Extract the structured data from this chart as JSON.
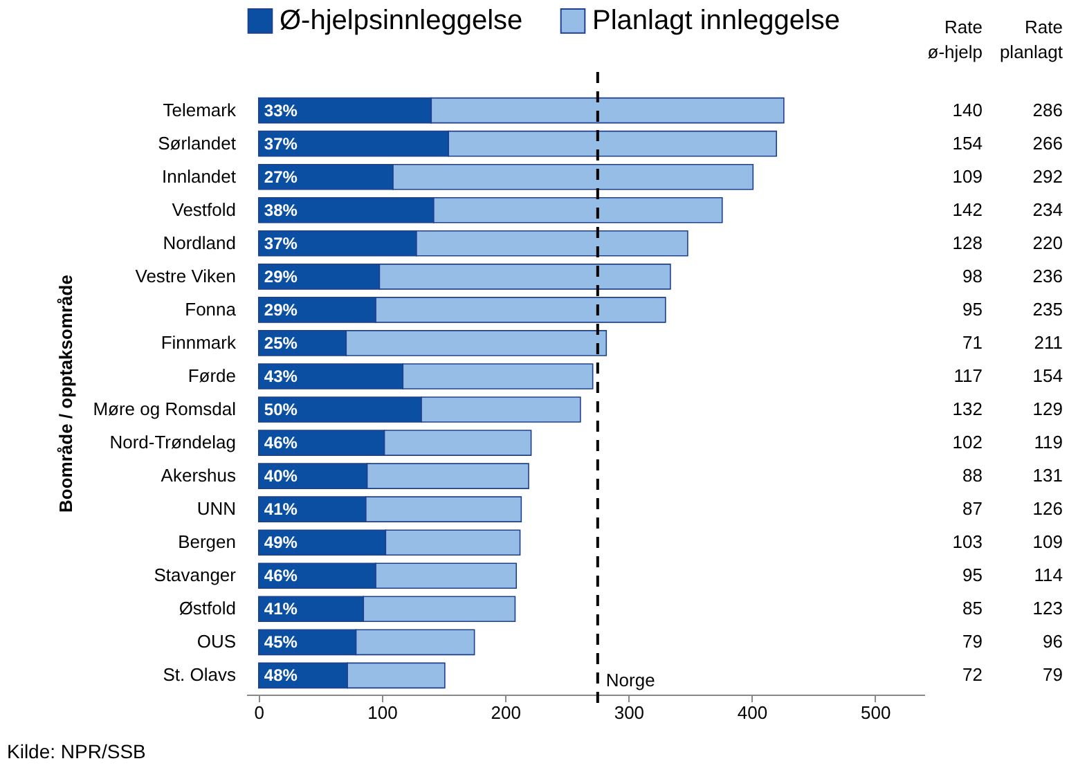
{
  "chart_data": {
    "type": "bar",
    "orientation": "horizontal",
    "stacked": true,
    "ylabel": "Boområde / opptaksområde",
    "categories": [
      "Telemark",
      "Sørlandet",
      "Innlandet",
      "Vestfold",
      "Nordland",
      "Vestre Viken",
      "Fonna",
      "Finnmark",
      "Førde",
      "Møre og Romsdal",
      "Nord-Trøndelag",
      "Akershus",
      "UNN",
      "Bergen",
      "Stavanger",
      "Østfold",
      "OUS",
      "St. Olavs"
    ],
    "series": [
      {
        "name": "Ø-hjelpsinnleggelse",
        "color": "#0b4fa3",
        "values": [
          140,
          154,
          109,
          142,
          128,
          98,
          95,
          71,
          117,
          132,
          102,
          88,
          87,
          103,
          95,
          85,
          79,
          72
        ]
      },
      {
        "name": "Planlagt innleggelse",
        "color": "#95bde6",
        "values": [
          286,
          266,
          292,
          234,
          220,
          236,
          235,
          211,
          154,
          129,
          119,
          131,
          126,
          109,
          114,
          123,
          96,
          79
        ]
      }
    ],
    "data_labels": true,
    "xlim": [
      -10,
      540
    ],
    "xticks": [
      0,
      100,
      200,
      300,
      400,
      500
    ],
    "ref_lines": [
      {
        "axis": "x",
        "value": 275,
        "label": "Norge",
        "color": "#000000",
        "line_style": "dashed"
      }
    ],
    "legend": "top",
    "grid": false,
    "annotations": [
      "Rate ø-hjelp",
      "Rate planlagt",
      "Kilde: NPR/SSB",
      {
        "text": "33%",
        "y": "Telemark"
      },
      {
        "text": "37%",
        "y": "Sørlandet"
      },
      {
        "text": "27%",
        "y": "Innlandet"
      },
      {
        "text": "38%",
        "y": "Vestfold"
      },
      {
        "text": "37%",
        "y": "Nordland"
      },
      {
        "text": "29%",
        "y": "Vestre Viken"
      },
      {
        "text": "29%",
        "y": "Fonna"
      },
      {
        "text": "25%",
        "y": "Finnmark"
      },
      {
        "text": "43%",
        "y": "Førde"
      },
      {
        "text": "50%",
        "y": "Møre og Romsdal"
      },
      {
        "text": "46%",
        "y": "Nord-Trøndelag"
      },
      {
        "text": "40%",
        "y": "Akershus"
      },
      {
        "text": "41%",
        "y": "UNN"
      },
      {
        "text": "49%",
        "y": "Bergen"
      },
      {
        "text": "46%",
        "y": "Stavanger"
      },
      {
        "text": "41%",
        "y": "Østfold"
      },
      {
        "text": "45%",
        "y": "OUS"
      },
      {
        "text": "48%",
        "y": "St. Olavs"
      }
    ]
  }
}
